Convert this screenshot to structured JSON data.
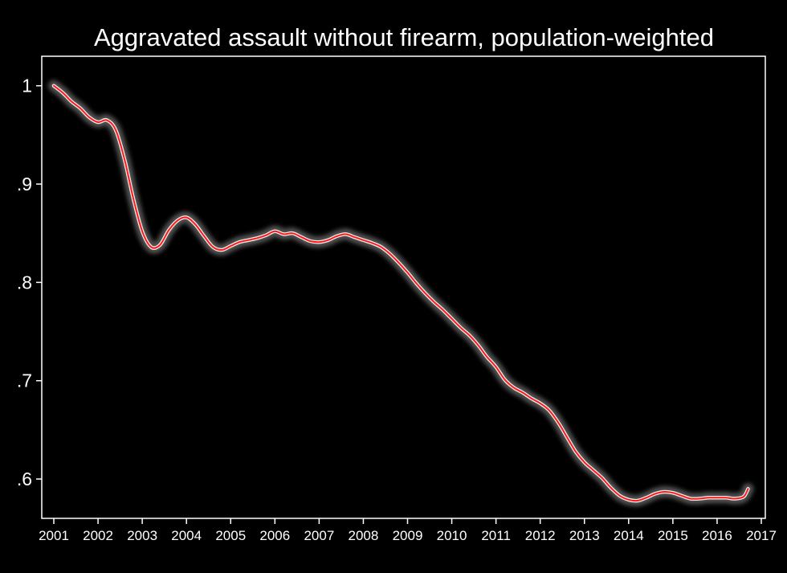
{
  "chart_data": {
    "type": "line",
    "title": "Aggravated assault without firearm, population-weighted",
    "xlabel": "",
    "ylabel": "",
    "xlim": [
      2001,
      2017
    ],
    "ylim": [
      0.56,
      1.03
    ],
    "x_ticks": [
      2001,
      2002,
      2003,
      2004,
      2005,
      2006,
      2007,
      2008,
      2009,
      2010,
      2011,
      2012,
      2013,
      2014,
      2015,
      2016,
      2017
    ],
    "x_tick_labels": [
      "2001",
      "2002",
      "2003",
      "2004",
      "2005",
      "2006",
      "2007",
      "2008",
      "2009",
      "2010",
      "2011",
      "2012",
      "2013",
      "2014",
      "2015",
      "2016",
      "2017"
    ],
    "y_ticks": [
      1.0,
      0.9,
      0.8,
      0.7,
      0.6
    ],
    "y_tick_labels": [
      "1",
      ".9",
      ".8",
      ".7",
      ".6"
    ],
    "grid": false,
    "legend": "none",
    "colors": {
      "background": "#000000",
      "axis": "#ffffff",
      "text": "#ffffff",
      "line": "#ff1a1a",
      "confidence_band": "#b3b3b3"
    },
    "series": [
      {
        "x": [
          2001.0,
          2001.2,
          2001.4,
          2001.6,
          2001.8,
          2002.0,
          2002.2,
          2002.4,
          2002.6,
          2002.8,
          2003.0,
          2003.2,
          2003.4,
          2003.6,
          2003.8,
          2004.0,
          2004.2,
          2004.4,
          2004.6,
          2004.8,
          2005.0,
          2005.2,
          2005.4,
          2005.6,
          2005.8,
          2006.0,
          2006.2,
          2006.4,
          2006.6,
          2006.8,
          2007.0,
          2007.2,
          2007.4,
          2007.6,
          2007.8,
          2008.0,
          2008.2,
          2008.4,
          2008.6,
          2008.8,
          2009.0,
          2009.2,
          2009.4,
          2009.6,
          2009.8,
          2010.0,
          2010.2,
          2010.4,
          2010.6,
          2010.8,
          2011.0,
          2011.2,
          2011.4,
          2011.6,
          2011.8,
          2012.0,
          2012.2,
          2012.4,
          2012.6,
          2012.8,
          2013.0,
          2013.2,
          2013.4,
          2013.6,
          2013.8,
          2014.0,
          2014.2,
          2014.4,
          2014.6,
          2014.8,
          2015.0,
          2015.2,
          2015.4,
          2015.6,
          2015.8,
          2016.0,
          2016.2,
          2016.4,
          2016.6,
          2016.7
        ],
        "y": [
          1.0,
          0.993,
          0.984,
          0.977,
          0.968,
          0.963,
          0.965,
          0.955,
          0.925,
          0.885,
          0.852,
          0.836,
          0.838,
          0.853,
          0.863,
          0.866,
          0.859,
          0.847,
          0.836,
          0.833,
          0.837,
          0.841,
          0.843,
          0.845,
          0.848,
          0.852,
          0.849,
          0.85,
          0.846,
          0.842,
          0.841,
          0.843,
          0.847,
          0.849,
          0.846,
          0.843,
          0.84,
          0.836,
          0.829,
          0.82,
          0.81,
          0.799,
          0.789,
          0.78,
          0.772,
          0.763,
          0.754,
          0.746,
          0.736,
          0.724,
          0.714,
          0.701,
          0.693,
          0.688,
          0.682,
          0.677,
          0.67,
          0.658,
          0.643,
          0.628,
          0.617,
          0.609,
          0.601,
          0.591,
          0.583,
          0.579,
          0.578,
          0.581,
          0.585,
          0.587,
          0.586,
          0.583,
          0.58,
          0.58,
          0.581,
          0.581,
          0.581,
          0.58,
          0.582,
          0.59
        ]
      }
    ]
  }
}
